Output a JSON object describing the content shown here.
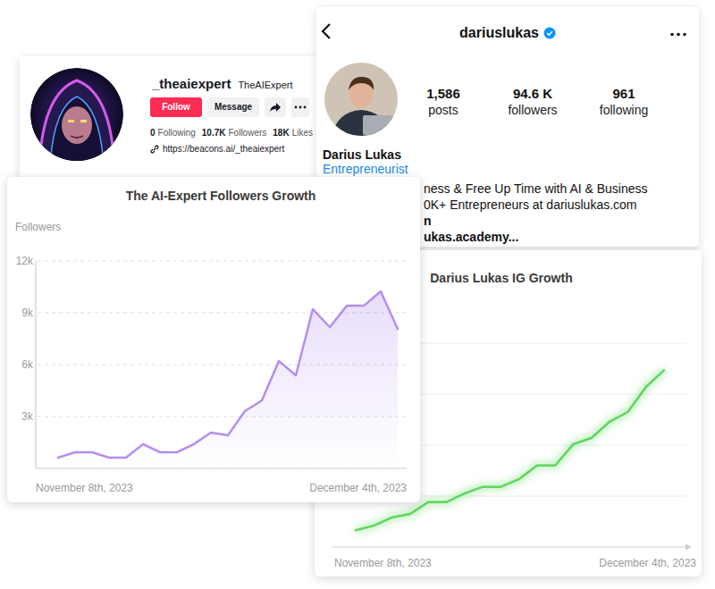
{
  "tiktok_profile": {
    "username": "_theaiexpert",
    "display_name": "TheAIExpert",
    "buttons": [
      "Follow",
      "Message"
    ],
    "stats": [
      {
        "value": "0",
        "label": "Following"
      },
      {
        "value": "10.7K",
        "label": "Followers"
      },
      {
        "value": "18K",
        "label": "Likes"
      }
    ],
    "link": "https://beacons.ai/_theaiexpert"
  },
  "instagram_profile": {
    "username": "dariuslukas",
    "stats": [
      {
        "value": "1,586",
        "label": "posts"
      },
      {
        "value": "94.6 K",
        "label": "followers"
      },
      {
        "value": "961",
        "label": "following"
      }
    ],
    "name": "Darius Lukas",
    "category": "Entrepreneurist",
    "bio_lines": [
      "ness & Free Up Time with AI & Business",
      "0K+ Entrepreneurs at dariuslukas.com",
      "n",
      "ukas.academy..."
    ]
  },
  "chart_data": [
    {
      "type": "line",
      "title": "The AI-Expert Followers Growth",
      "y_label": "Followers",
      "categories": [
        "November 8th, 2023",
        null,
        null,
        null,
        null,
        null,
        null,
        null,
        null,
        null,
        null,
        null,
        null,
        null,
        null,
        null,
        null,
        null,
        null,
        null,
        "December 4th, 2023"
      ],
      "values": [
        620,
        930,
        930,
        620,
        620,
        1400,
        930,
        930,
        1400,
        2070,
        1910,
        3310,
        3930,
        6210,
        5380,
        9210,
        8170,
        9410,
        9410,
        10240,
        8070
      ],
      "color": "#b48ef2",
      "ylim": [
        0,
        12000
      ],
      "yticks": [
        {
          "value": 3000,
          "label": "3k"
        },
        {
          "value": 6000,
          "label": "6k"
        },
        {
          "value": 9000,
          "label": "9k"
        },
        {
          "value": 12000,
          "label": "12k"
        }
      ],
      "grid": true
    },
    {
      "type": "line",
      "title": "Darius Lukas IG Growth",
      "categories": [
        "November 8th, 2023",
        null,
        null,
        null,
        null,
        null,
        null,
        null,
        null,
        null,
        null,
        null,
        null,
        null,
        null,
        null,
        null,
        "December 4th, 2023"
      ],
      "values": [
        0.33,
        0.42,
        0.58,
        0.65,
        0.88,
        0.88,
        1.05,
        1.18,
        1.18,
        1.33,
        1.6,
        1.6,
        2.02,
        2.14,
        2.46,
        2.65,
        3.14,
        3.47
      ],
      "color": "#5ed65e",
      "ylim": [
        0,
        4
      ],
      "yticks": [
        0,
        1,
        2,
        3,
        4
      ],
      "grid": true,
      "tick_labels": "x"
    }
  ]
}
